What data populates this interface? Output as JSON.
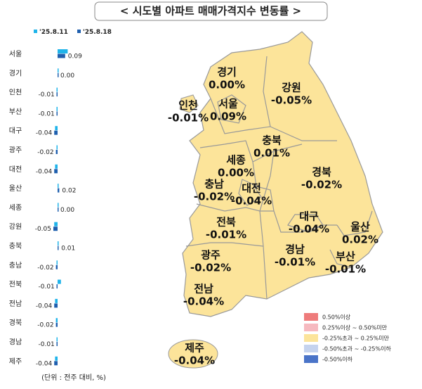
{
  "title": "< 시도별 아파트 매매가격지수 변동률 >",
  "chart_data": {
    "type": "bar",
    "orientation": "horizontal",
    "categories": [
      "서울",
      "경기",
      "인천",
      "부산",
      "대구",
      "광주",
      "대전",
      "울산",
      "세종",
      "강원",
      "충북",
      "충남",
      "전북",
      "전남",
      "경북",
      "경남",
      "제주"
    ],
    "series": [
      {
        "name": "'25.8.11",
        "color": "#1fb4ea",
        "values": [
          0.12,
          0.0,
          -0.01,
          -0.01,
          -0.03,
          -0.01,
          -0.03,
          0.01,
          0.0,
          -0.04,
          0.01,
          -0.01,
          0.04,
          -0.03,
          -0.02,
          -0.01,
          -0.03
        ]
      },
      {
        "name": "'25.8.18",
        "color": "#1f5fae",
        "values": [
          0.09,
          0.0,
          -0.01,
          -0.01,
          -0.04,
          -0.02,
          -0.04,
          0.02,
          0.0,
          -0.05,
          0.01,
          -0.02,
          -0.01,
          -0.04,
          -0.02,
          -0.01,
          -0.04
        ],
        "value_labels": [
          "0.09",
          "0.00",
          "-0.01",
          "-0.01",
          "-0.04",
          "-0.02",
          "-0.04",
          "0.02",
          "0.00",
          "-0.05",
          "0.01",
          "-0.02",
          "-0.01",
          "-0.04",
          "-0.02",
          "-0.01",
          "-0.04"
        ]
      }
    ],
    "note": "(단위 : 전주 대비, %)"
  },
  "map": {
    "regions": [
      {
        "name": "경기",
        "value": 0.0,
        "label": "0.00%"
      },
      {
        "name": "인천",
        "value": -0.01,
        "label": "-0.01%"
      },
      {
        "name": "서울",
        "value": 0.09,
        "label": "0.09%"
      },
      {
        "name": "강원",
        "value": -0.05,
        "label": "-0.05%"
      },
      {
        "name": "충북",
        "value": 0.01,
        "label": "0.01%"
      },
      {
        "name": "세종",
        "value": 0.0,
        "label": "0.00%"
      },
      {
        "name": "충남",
        "value": -0.02,
        "label": "-0.02%"
      },
      {
        "name": "대전",
        "value": -0.04,
        "label": "-0.04%"
      },
      {
        "name": "경북",
        "value": -0.02,
        "label": "-0.02%"
      },
      {
        "name": "대구",
        "value": -0.04,
        "label": "-0.04%"
      },
      {
        "name": "울산",
        "value": 0.02,
        "label": "0.02%"
      },
      {
        "name": "전북",
        "value": -0.01,
        "label": "-0.01%"
      },
      {
        "name": "광주",
        "value": -0.02,
        "label": "-0.02%"
      },
      {
        "name": "경남",
        "value": -0.01,
        "label": "-0.01%"
      },
      {
        "name": "부산",
        "value": -0.01,
        "label": "-0.01%"
      },
      {
        "name": "전남",
        "value": -0.04,
        "label": "-0.04%"
      },
      {
        "name": "제주",
        "value": -0.04,
        "label": "-0.04%"
      }
    ],
    "legend": [
      {
        "label": "0.50%이상",
        "color": "#ee7b7b"
      },
      {
        "label": "0.25%이상 ~ 0.50%미만",
        "color": "#f6b9bf"
      },
      {
        "label": "-0.25%초과 ~ 0.25%미만",
        "color": "#fce49a"
      },
      {
        "label": "-0.50%초과 ~ -0.25%이하",
        "color": "#c5d3ee"
      },
      {
        "label": "-0.50%이하",
        "color": "#4a74c8"
      }
    ]
  }
}
